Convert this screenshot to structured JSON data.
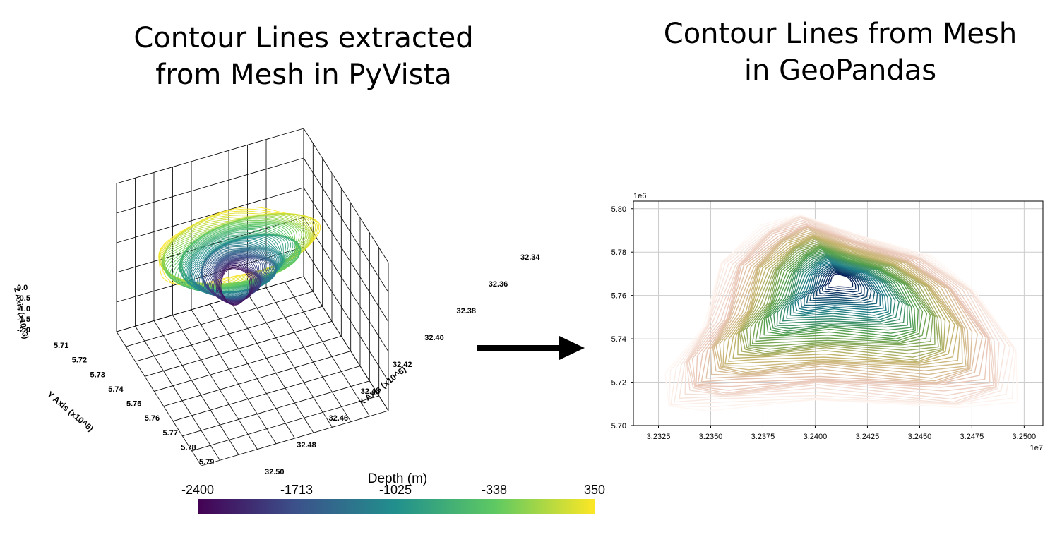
{
  "titles": {
    "left_line1": "Contour Lines extracted",
    "left_line2": "from Mesh in PyVista",
    "right_line1": "Contour Lines from Mesh",
    "right_line2": "in GeoPandas"
  },
  "chart_data": [
    {
      "type": "line",
      "subtype": "3d-contour",
      "x_axis_label": "X Axis (x10^6)",
      "x_ticks": [
        "32.34",
        "32.36",
        "32.38",
        "32.40",
        "32.42",
        "32.44",
        "32.46",
        "32.48",
        "32.50"
      ],
      "y_axis_label": "Y Axis (x10^6)",
      "y_ticks": [
        "5.71",
        "5.72",
        "5.73",
        "5.74",
        "5.75",
        "5.76",
        "5.77",
        "5.78",
        "5.79"
      ],
      "z_axis_label": "Z Axis (x10^3)",
      "z_ticks": [
        "0.0",
        "-0.5",
        "-1.0",
        "-1.5",
        "-2.0"
      ],
      "colorbar": {
        "label": "Depth (m)",
        "ticks": [
          "-2400",
          "-1713",
          "-1025",
          "-338",
          "350"
        ],
        "range": [
          -2400,
          350
        ],
        "colormap": [
          "#440154",
          "#3b528b",
          "#21908d",
          "#5ec962",
          "#fde725"
        ]
      }
    },
    {
      "type": "line",
      "subtype": "2d-contour",
      "x_ticks": [
        "3.2325",
        "3.2350",
        "3.2375",
        "3.2400",
        "3.2425",
        "3.2450",
        "3.2475",
        "3.2500"
      ],
      "x_ticks_values": [
        3.2325,
        3.235,
        3.2375,
        3.24,
        3.2425,
        3.245,
        3.2475,
        3.25
      ],
      "x_offset": "1e7",
      "xlim": [
        3.2313,
        3.2509
      ],
      "y_ticks": [
        "5.70",
        "5.72",
        "5.74",
        "5.76",
        "5.78",
        "5.80"
      ],
      "y_ticks_values": [
        5.7,
        5.72,
        5.74,
        5.76,
        5.78,
        5.8
      ],
      "y_offset": "1e6",
      "ylim": [
        5.7,
        5.8035
      ],
      "grid": true,
      "colormap": [
        "#081d58",
        "#1f7e8a",
        "#56a04a",
        "#c2b36a",
        "#e8c4b4",
        "#fff7f3"
      ]
    }
  ],
  "arrow": {
    "color": "#000000"
  }
}
